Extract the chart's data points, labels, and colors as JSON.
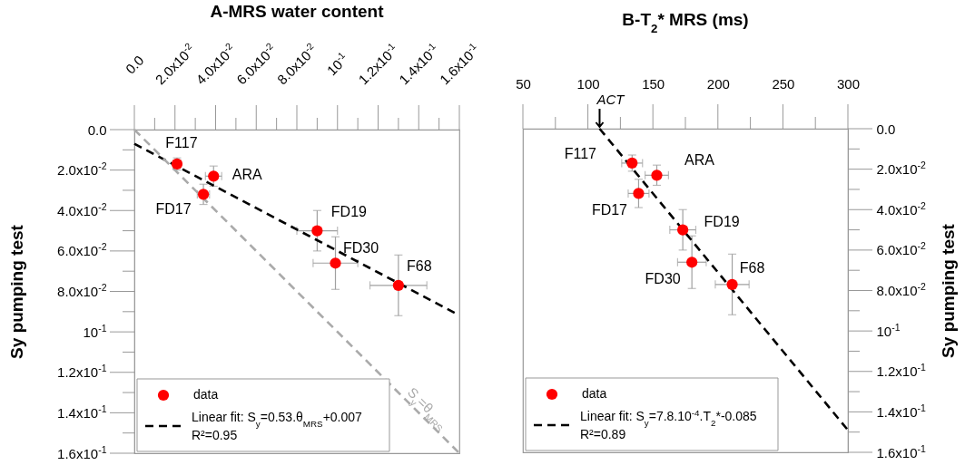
{
  "chart_data": [
    {
      "type": "scatter",
      "title": "A-MRS water content",
      "ylabel": "Sy pumping test",
      "xlim": [
        0,
        0.16
      ],
      "ylim": [
        0.16,
        0
      ],
      "xticks": [
        {
          "value": 0,
          "label": "0.0"
        },
        {
          "value": 0.01,
          "label": null
        },
        {
          "value": 0.02,
          "label": "2.0x10$^{-2}$"
        },
        {
          "value": 0.03,
          "label": null
        },
        {
          "value": 0.04,
          "label": "4.0x10$^{-2}$"
        },
        {
          "value": 0.05,
          "label": null
        },
        {
          "value": 0.06,
          "label": "6.0x10$^{-2}$"
        },
        {
          "value": 0.07,
          "label": null
        },
        {
          "value": 0.08,
          "label": "8.0x10$^{-2}$"
        },
        {
          "value": 0.09,
          "label": null
        },
        {
          "value": 0.1,
          "label": "10$^{-1}$"
        },
        {
          "value": 0.11,
          "label": null
        },
        {
          "value": 0.12,
          "label": "1.2x10$^{-1}$"
        },
        {
          "value": 0.13,
          "label": null
        },
        {
          "value": 0.14,
          "label": "1.4x10$^{-1}$"
        },
        {
          "value": 0.15,
          "label": null
        },
        {
          "value": 0.16,
          "label": "1.6x10$^{-1}$"
        }
      ],
      "yticks": [
        {
          "value": 0,
          "label": "0.0"
        },
        {
          "value": 0.01,
          "label": null
        },
        {
          "value": 0.02,
          "label": "2.0x10$^{-2}$"
        },
        {
          "value": 0.03,
          "label": null
        },
        {
          "value": 0.04,
          "label": "4.0x10$^{-2}$"
        },
        {
          "value": 0.05,
          "label": null
        },
        {
          "value": 0.06,
          "label": "6.0x10$^{-2}$"
        },
        {
          "value": 0.07,
          "label": null
        },
        {
          "value": 0.08,
          "label": "8.0x10$^{-2}$"
        },
        {
          "value": 0.09,
          "label": null
        },
        {
          "value": 0.1,
          "label": "10$^{-1}$"
        },
        {
          "value": 0.11,
          "label": null
        },
        {
          "value": 0.12,
          "label": "1.2x10$^{-1}$"
        },
        {
          "value": 0.13,
          "label": null
        },
        {
          "value": 0.14,
          "label": "1.4x10$^{-1}$"
        },
        {
          "value": 0.15,
          "label": null
        },
        {
          "value": 0.16,
          "label": "1.6x10$^{-1}$"
        }
      ],
      "legend": "bottom left",
      "series": [
        {
          "name": "data",
          "marker": "circle",
          "color": "#ff0000",
          "x": [
            0.021,
            0.039,
            0.034,
            0.09,
            0.099,
            0.13
          ],
          "values": [
            0.017,
            0.023,
            0.032,
            0.05,
            0.066,
            0.077
          ],
          "errors": [
            0.003,
            0.005,
            0.005,
            0.01,
            0.013,
            0.015
          ],
          "xerrors": [
            0.002,
            0.004,
            0.003,
            0.01,
            0.011,
            0.014
          ]
        },
        {
          "name": "Linear fit: S$_{y}$=0.53.θ$_{MRS}$+0.007",
          "type": "line",
          "color": "#000000",
          "line_style": "dashed",
          "x": [
            0,
            0.16
          ],
          "values": [
            0.007,
            0.0918
          ]
        },
        {
          "name": "S$_{y}$=θ$_{MRS}$",
          "type": "line",
          "color": "#aaaaaa",
          "line_style": "dashed",
          "x": [
            0,
            0.16
          ],
          "values": [
            0,
            0.16
          ]
        }
      ],
      "annotations": [
        {
          "text": "F117",
          "x": 0.021,
          "y": 0.017
        },
        {
          "text": "ARA",
          "x": 0.039,
          "y": 0.023
        },
        {
          "text": "FD17",
          "x": 0.034,
          "y": 0.032
        },
        {
          "text": "FD19",
          "x": 0.09,
          "y": 0.05
        },
        {
          "text": "FD30",
          "x": 0.099,
          "y": 0.066
        },
        {
          "text": "F68",
          "x": 0.13,
          "y": 0.077
        },
        "R²=0.95"
      ]
    },
    {
      "type": "scatter",
      "title": "B-T$_{2}$* MRS (ms)",
      "ylabel": "Sy pumping test",
      "xlim": [
        50,
        300
      ],
      "ylim": [
        0.16,
        0
      ],
      "xticks": [
        50,
        {
          "value": 75,
          "label": null
        },
        100,
        {
          "value": 125,
          "label": null
        },
        150,
        {
          "value": 175,
          "label": null
        },
        200,
        {
          "value": 225,
          "label": null
        },
        250,
        {
          "value": 275,
          "label": null
        },
        300
      ],
      "yticks": [
        {
          "value": 0,
          "label": "0.0"
        },
        {
          "value": 0.01,
          "label": null
        },
        {
          "value": 0.02,
          "label": "2.0x10$^{-2}$"
        },
        {
          "value": 0.03,
          "label": null
        },
        {
          "value": 0.04,
          "label": "4.0x10$^{-2}$"
        },
        {
          "value": 0.05,
          "label": null
        },
        {
          "value": 0.06,
          "label": "6.0x10$^{-2}$"
        },
        {
          "value": 0.07,
          "label": null
        },
        {
          "value": 0.08,
          "label": "8.0x10$^{-2}$"
        },
        {
          "value": 0.09,
          "label": null
        },
        {
          "value": 0.1,
          "label": "10$^{-1}$"
        },
        {
          "value": 0.11,
          "label": null
        },
        {
          "value": 0.12,
          "label": "1.2x10$^{-1}$"
        },
        {
          "value": 0.13,
          "label": null
        },
        {
          "value": 0.14,
          "label": "1.4x10$^{-1}$"
        },
        {
          "value": 0.15,
          "label": null
        },
        {
          "value": 0.16,
          "label": "1.6x10$^{-1}$"
        }
      ],
      "legend": "bottom left",
      "series": [
        {
          "name": "data",
          "marker": "circle",
          "color": "#ff0000",
          "x": [
            134,
            153,
            139,
            173,
            180,
            211
          ],
          "values": [
            0.017,
            0.023,
            0.032,
            0.05,
            0.066,
            0.077
          ],
          "errors": [
            0.004,
            0.005,
            0.007,
            0.01,
            0.013,
            0.015
          ],
          "xerrors": [
            8,
            9,
            8,
            10,
            11,
            13
          ]
        },
        {
          "name": "Linear fit: S$_{y}$=7.8.10$^{-4}$.T$_{2}$*-0.085",
          "type": "line",
          "color": "#000000",
          "line_style": "dashed",
          "x": [
            109,
            300
          ],
          "values": [
            0,
            0.149
          ]
        }
      ],
      "annotations": [
        {
          "text": "F117",
          "x": 134,
          "y": 0.017
        },
        {
          "text": "ARA",
          "x": 153,
          "y": 0.023
        },
        {
          "text": "FD17",
          "x": 139,
          "y": 0.032
        },
        {
          "text": "FD19",
          "x": 173,
          "y": 0.05
        },
        {
          "text": "FD30",
          "x": 180,
          "y": 0.066
        },
        {
          "text": "F68",
          "x": 211,
          "y": 0.077
        },
        {
          "text": "ACT",
          "x": 109,
          "y": 0
        },
        "R²=0.89"
      ]
    }
  ]
}
